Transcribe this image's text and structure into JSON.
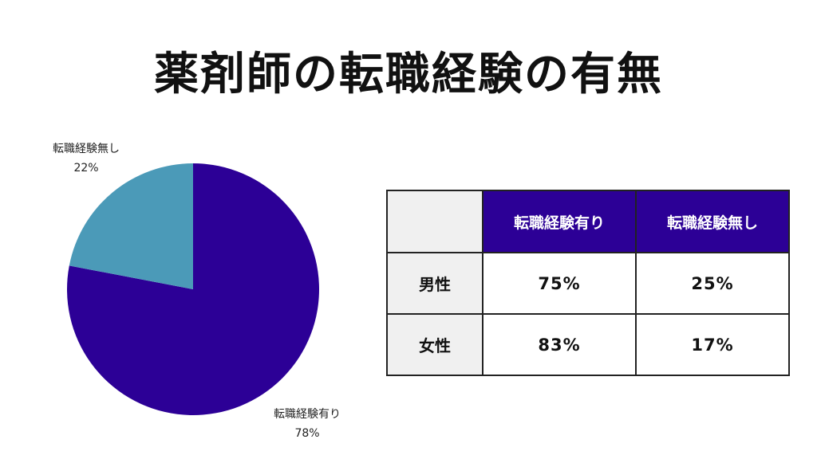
{
  "title": "薬剤師の転職経験の有無",
  "chart_data": [
    {
      "type": "pie",
      "title": "",
      "slices": [
        {
          "label": "転職経験有り",
          "value": 78,
          "value_label": "78%",
          "color": "#2c0096"
        },
        {
          "label": "転職経験無し",
          "value": 22,
          "value_label": "22%",
          "color": "#4b9ab8"
        }
      ]
    },
    {
      "type": "table",
      "columns": [
        "",
        "転職経験有り",
        "転職経験無し"
      ],
      "rows": [
        {
          "label": "男性",
          "values": [
            "75%",
            "25%"
          ]
        },
        {
          "label": "女性",
          "values": [
            "83%",
            "17%"
          ]
        }
      ],
      "header_color": "#2c0096"
    }
  ]
}
